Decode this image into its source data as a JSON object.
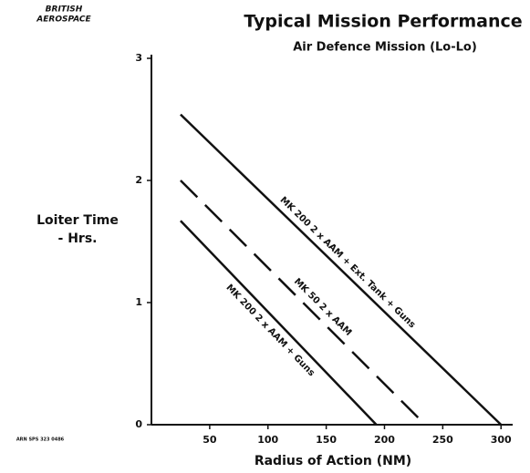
{
  "chart_data": {
    "type": "line",
    "logo": [
      "BRITISH",
      "AEROSPACE"
    ],
    "title": "Typical Mission Performance",
    "subtitle": "Air Defence Mission (Lo-Lo)",
    "y_label": [
      "Loiter Time",
      "- Hrs."
    ],
    "x_label": "Radius of Action (NM)",
    "reference": "ARN SPS 323 0486",
    "xlim": [
      0,
      310
    ],
    "xticks": [
      50,
      100,
      150,
      200,
      250,
      300
    ],
    "ylim": [
      0,
      3
    ],
    "yticks": [
      0,
      1,
      2,
      3
    ],
    "series": [
      {
        "name": "MK 200  2 x AAM + Ext. Tank + Guns",
        "color": "#111111",
        "dash": false,
        "x": [
          25,
          300
        ],
        "values": [
          2.54,
          0
        ]
      },
      {
        "name": "MK 50  2 x AAM",
        "color": "#111111",
        "dash": true,
        "x": [
          25,
          235
        ],
        "values": [
          2.0,
          0
        ]
      },
      {
        "name": "MK 200  2 x AAM + Guns",
        "color": "#111111",
        "dash": false,
        "x": [
          25,
          193
        ],
        "values": [
          1.67,
          0
        ]
      }
    ]
  }
}
